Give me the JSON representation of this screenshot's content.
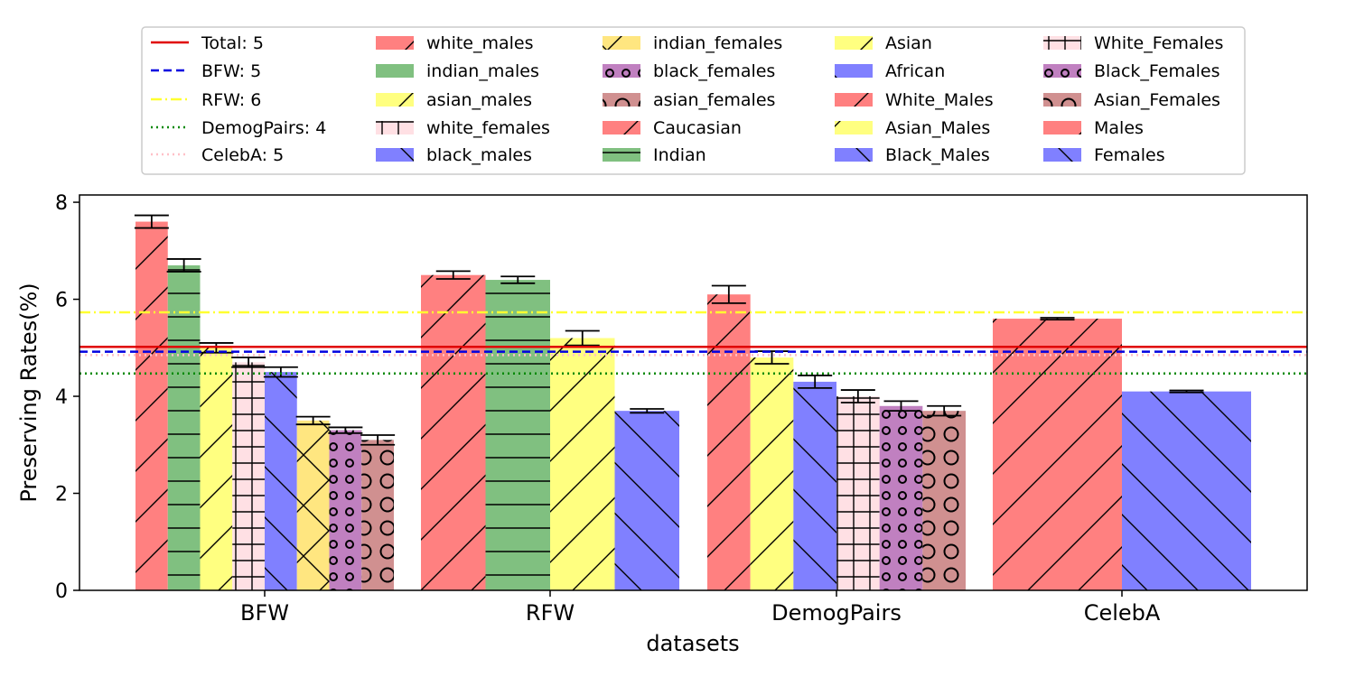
{
  "chart_data": {
    "type": "bar",
    "title": "",
    "xlabel": "datasets",
    "ylabel": "Preserving Rates(%)",
    "ylim": [
      0,
      8.15
    ],
    "yticks": [
      0,
      2,
      4,
      6,
      8
    ],
    "grid": false,
    "legend_position": "top",
    "groups": [
      {
        "label": "BFW",
        "bars": [
          {
            "name": "white_males",
            "value": 7.6,
            "err": 0.13,
            "color": "#ff8080",
            "hatch": "fslash"
          },
          {
            "name": "indian_males",
            "value": 6.7,
            "err": 0.13,
            "color": "#80c080",
            "hatch": "hline"
          },
          {
            "name": "asian_males",
            "value": 5.0,
            "err": 0.1,
            "color": "#ffff80",
            "hatch": "fslash"
          },
          {
            "name": "white_females",
            "value": 4.7,
            "err": 0.1,
            "color": "#ffe0e4",
            "hatch": "plus"
          },
          {
            "name": "black_males",
            "value": 4.5,
            "err": 0.1,
            "color": "#8080ff",
            "hatch": "bslash"
          },
          {
            "name": "indian_females",
            "value": 3.5,
            "err": 0.08,
            "color": "#ffe680",
            "hatch": "cross"
          },
          {
            "name": "black_females",
            "value": 3.3,
            "err": 0.06,
            "color": "#c080c0",
            "hatch": "smallcircle"
          },
          {
            "name": "asian_females",
            "value": 3.1,
            "err": 0.1,
            "color": "#d09090",
            "hatch": "bigcircle"
          }
        ]
      },
      {
        "label": "RFW",
        "bars": [
          {
            "name": "Caucasian",
            "value": 6.5,
            "err": 0.08,
            "color": "#ff8080",
            "hatch": "fslash"
          },
          {
            "name": "Indian",
            "value": 6.4,
            "err": 0.07,
            "color": "#80c080",
            "hatch": "hline"
          },
          {
            "name": "Asian",
            "value": 5.2,
            "err": 0.15,
            "color": "#ffff80",
            "hatch": "fslash"
          },
          {
            "name": "African",
            "value": 3.7,
            "err": 0.04,
            "color": "#8080ff",
            "hatch": "bslash"
          }
        ]
      },
      {
        "label": "DemogPairs",
        "bars": [
          {
            "name": "White_Males",
            "value": 6.1,
            "err": 0.18,
            "color": "#ff8080",
            "hatch": "fslash"
          },
          {
            "name": "Asian_Males",
            "value": 4.8,
            "err": 0.13,
            "color": "#ffff80",
            "hatch": "fslash"
          },
          {
            "name": "Black_Males",
            "value": 4.3,
            "err": 0.13,
            "color": "#8080ff",
            "hatch": "bslash"
          },
          {
            "name": "White_Females",
            "value": 4.0,
            "err": 0.13,
            "color": "#ffe0e4",
            "hatch": "plus"
          },
          {
            "name": "Black_Females",
            "value": 3.8,
            "err": 0.1,
            "color": "#c080c0",
            "hatch": "smallcircle"
          },
          {
            "name": "Asian_Females",
            "value": 3.7,
            "err": 0.1,
            "color": "#d09090",
            "hatch": "bigcircle"
          }
        ]
      },
      {
        "label": "CelebA",
        "bars": [
          {
            "name": "Males",
            "value": 5.6,
            "err": 0.02,
            "color": "#ff8080",
            "hatch": "fslash"
          },
          {
            "name": "Females",
            "value": 4.1,
            "err": 0.02,
            "color": "#8080ff",
            "hatch": "bslash"
          }
        ]
      }
    ],
    "reference_lines": [
      {
        "label": "Total: 5",
        "value": 5.02,
        "color": "#e00000",
        "dash": "solid"
      },
      {
        "label": "BFW: 5",
        "value": 4.92,
        "color": "#0000e0",
        "dash": "dashed"
      },
      {
        "label": "RFW: 6",
        "value": 5.73,
        "color": "#ffff30",
        "dash": "dashdot"
      },
      {
        "label": "DemogPairs: 4",
        "value": 4.47,
        "color": "#008800",
        "dash": "dotted"
      },
      {
        "label": "CelebA: 5",
        "value": 4.85,
        "color": "#ffc0c8",
        "dash": "dotted"
      }
    ],
    "legend_columns": [
      [
        "Total: 5",
        "BFW: 5",
        "RFW: 6",
        "DemogPairs: 4",
        "CelebA: 5"
      ],
      [
        "white_males",
        "indian_males",
        "asian_males",
        "white_females",
        "black_males"
      ],
      [
        "indian_females",
        "black_females",
        "asian_females",
        "Caucasian",
        "Indian"
      ],
      [
        "Asian",
        "African",
        "White_Males",
        "Asian_Males",
        "Black_Males"
      ],
      [
        "White_Females",
        "Black_Females",
        "Asian_Females",
        "Males",
        "Females"
      ]
    ]
  }
}
